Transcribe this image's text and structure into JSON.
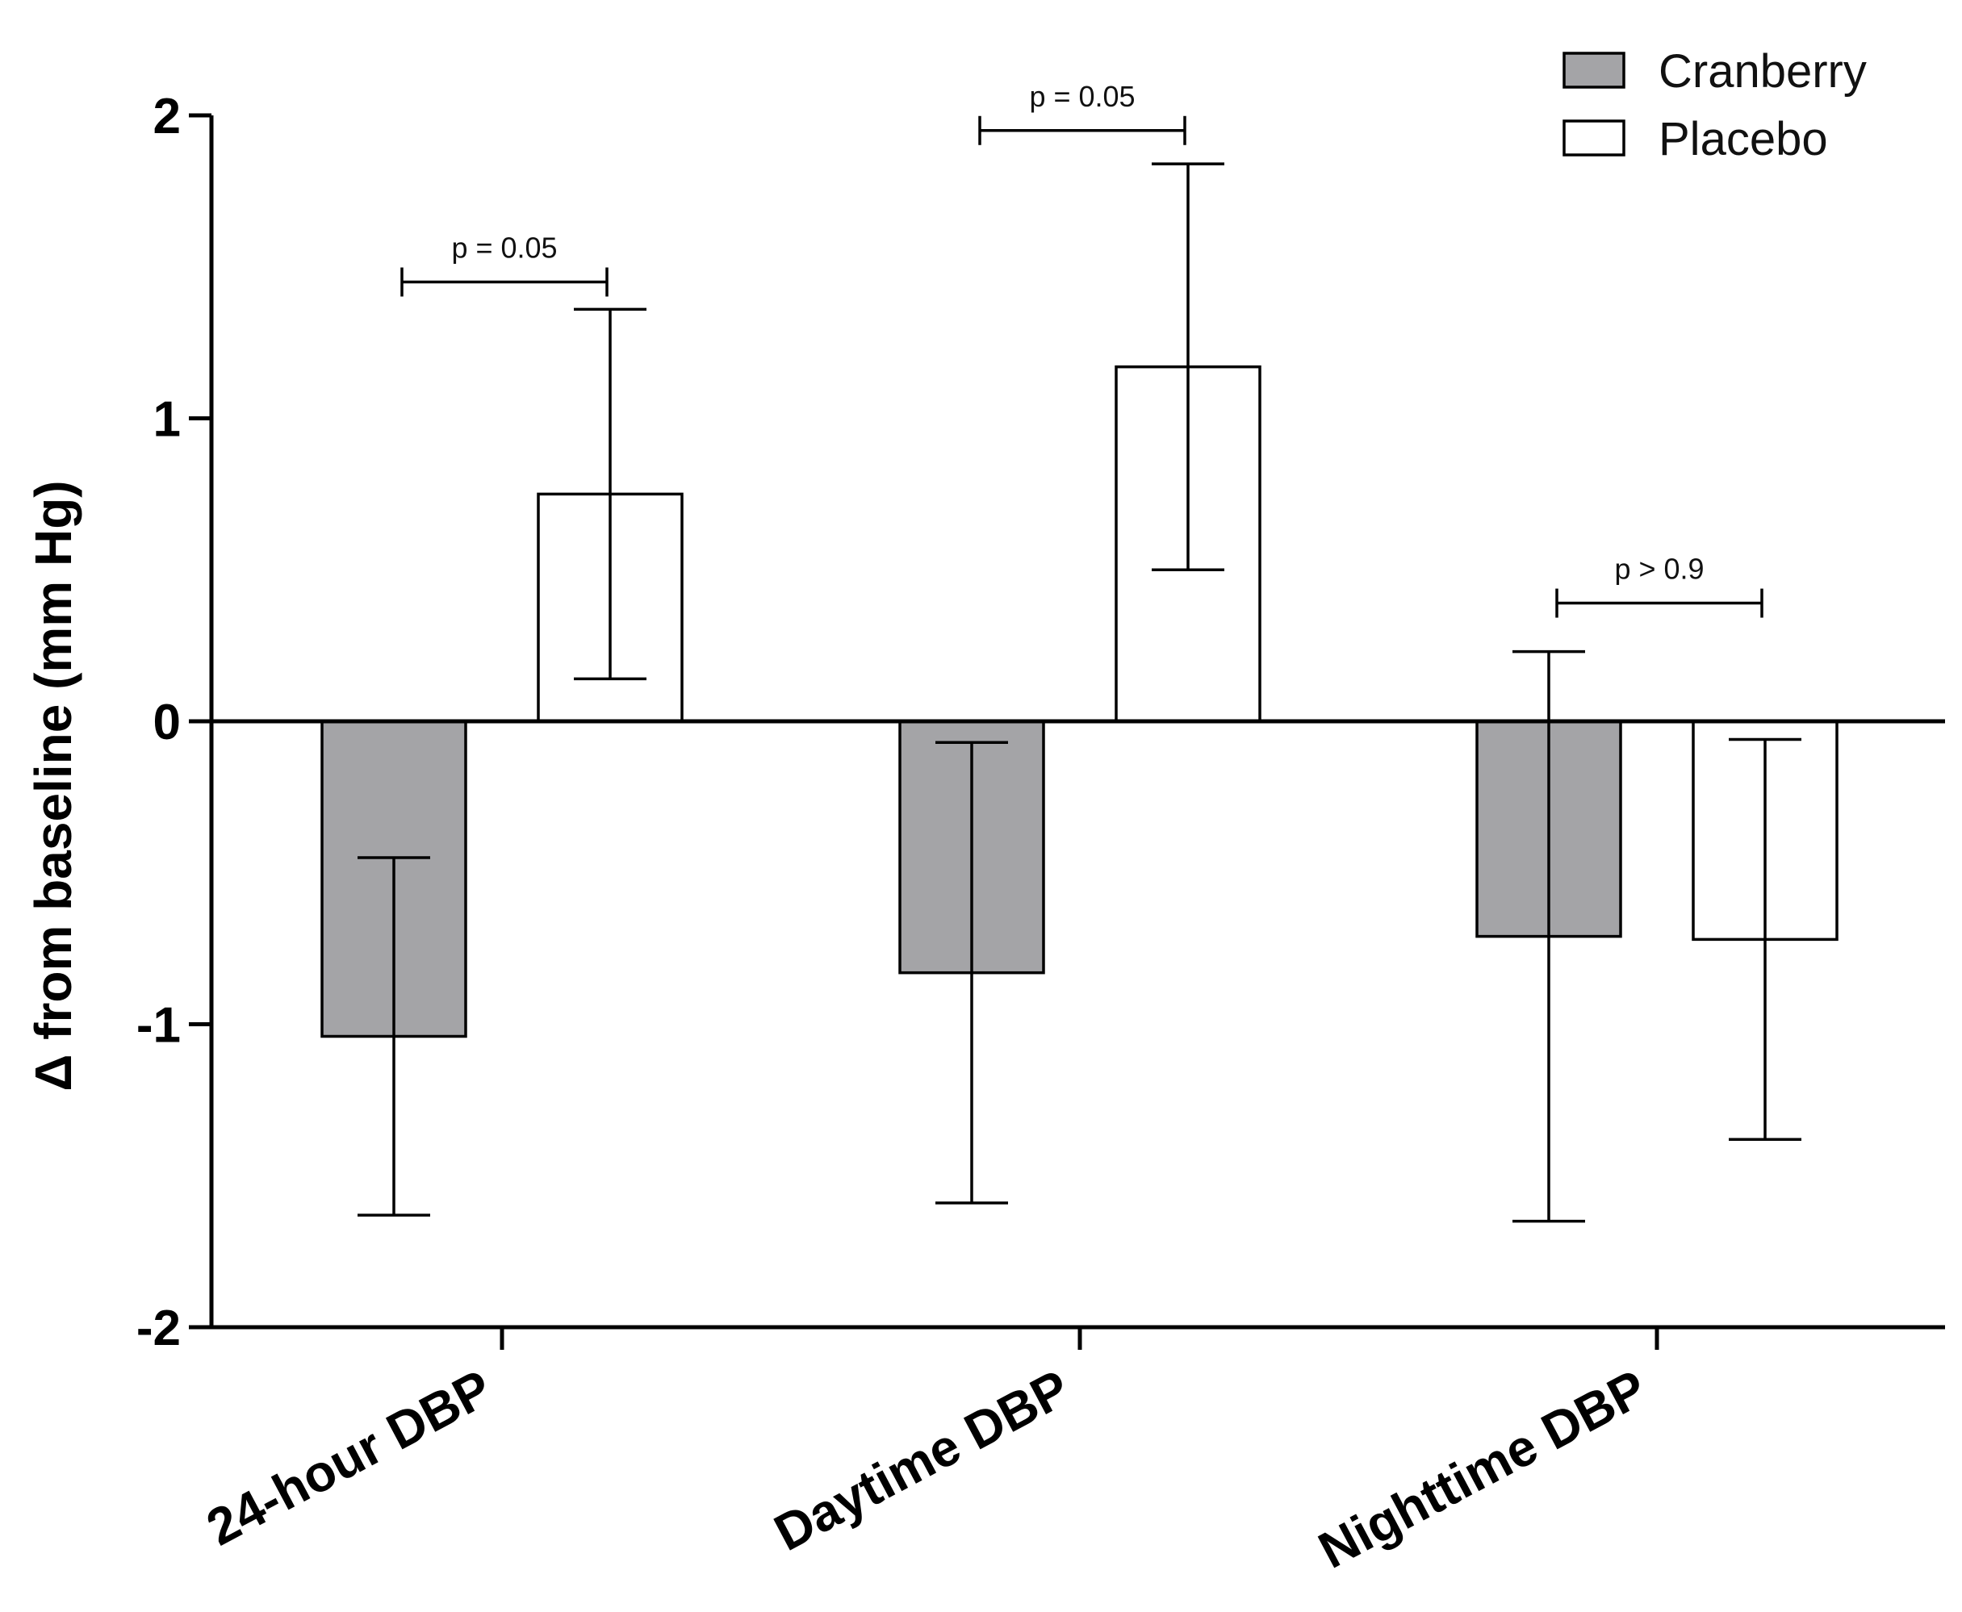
{
  "chart_data": {
    "type": "bar",
    "title": "",
    "xlabel": "",
    "ylabel": "Δ from baseline (mm Hg)",
    "ylim": [
      -2,
      2
    ],
    "yticks": [
      2,
      1,
      0,
      -1,
      -2
    ],
    "categories": [
      "24-hour DBP",
      "Daytime DBP",
      "Nighttime DBP"
    ],
    "series": [
      {
        "name": "Cranberry",
        "color": "#a4a4a7",
        "values": [
          -1.04,
          -0.83,
          -0.71
        ],
        "err_low": [
          -1.63,
          -1.59,
          -1.65
        ],
        "err_high": [
          -0.45,
          -0.07,
          0.23
        ]
      },
      {
        "name": "Placebo",
        "color": "#ffffff",
        "values": [
          0.75,
          1.17,
          -0.72
        ],
        "err_low": [
          0.14,
          0.5,
          -1.38
        ],
        "err_high": [
          1.36,
          1.84,
          -0.06
        ]
      }
    ],
    "annotations": [
      {
        "category": "24-hour DBP",
        "text": "p = 0.05",
        "y": 1.45
      },
      {
        "category": "Daytime DBP",
        "text": "p = 0.05",
        "y": 1.95
      },
      {
        "category": "Nighttime DBP",
        "text": "p > 0.9",
        "y": 0.39
      }
    ],
    "legend": {
      "position": "top-right"
    }
  }
}
